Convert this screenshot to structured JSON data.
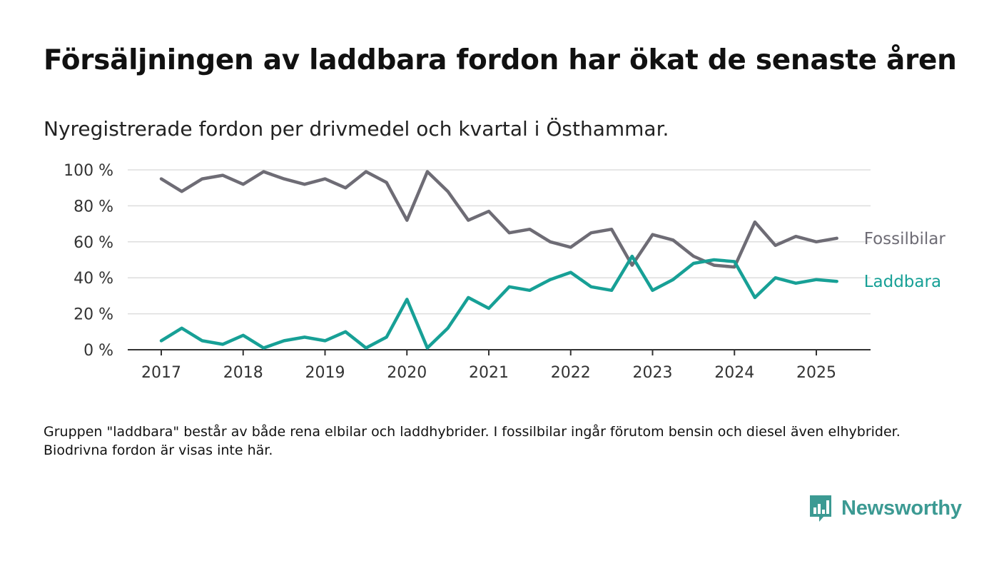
{
  "title": "Försäljningen av laddbara fordon har ökat de senaste åren",
  "subtitle": "Nyregistrerade fordon per drivmedel och kvartal i Östhammar.",
  "note": "Gruppen \"laddbara\" består av både rena elbilar och laddhybrider. I fossilbilar ingår förutom bensin och diesel även elhybrider. Biodrivna fordon är visas inte här.",
  "brand": {
    "name": "Newsworthy",
    "icon": "bar-chart-speech-bubble-icon",
    "color": "#3c9a93"
  },
  "colors": {
    "fossil": "#6e6c75",
    "laddbara": "#17a096",
    "grid": "#dddddd",
    "axis": "#333333",
    "tick_text": "#333333"
  },
  "chart_data": {
    "type": "line",
    "x": [
      2017.0,
      2017.25,
      2017.5,
      2017.75,
      2018.0,
      2018.25,
      2018.5,
      2018.75,
      2019.0,
      2019.25,
      2019.5,
      2019.75,
      2020.0,
      2020.25,
      2020.5,
      2020.75,
      2021.0,
      2021.25,
      2021.5,
      2021.75,
      2022.0,
      2022.25,
      2022.5,
      2022.75,
      2023.0,
      2023.25,
      2023.5,
      2023.75,
      2024.0,
      2024.25,
      2024.5,
      2024.75,
      2025.0,
      2025.25
    ],
    "series": [
      {
        "name": "Fossilbilar",
        "values": [
          95,
          88,
          95,
          97,
          92,
          99,
          95,
          92,
          95,
          90,
          99,
          93,
          72,
          99,
          88,
          72,
          77,
          65,
          67,
          60,
          57,
          65,
          67,
          47,
          64,
          61,
          52,
          47,
          46,
          71,
          58,
          63,
          60,
          62
        ]
      },
      {
        "name": "Laddbara",
        "values": [
          5,
          12,
          5,
          3,
          8,
          1,
          5,
          7,
          5,
          10,
          1,
          7,
          28,
          1,
          12,
          29,
          23,
          35,
          33,
          39,
          43,
          35,
          33,
          52,
          33,
          39,
          48,
          50,
          49,
          29,
          40,
          37,
          39,
          38
        ]
      }
    ],
    "xticks": [
      2017,
      2018,
      2019,
      2020,
      2021,
      2022,
      2023,
      2024,
      2025
    ],
    "xtick_labels": [
      "2017",
      "2018",
      "2019",
      "2020",
      "2021",
      "2022",
      "2023",
      "2024",
      "2025"
    ],
    "yticks": [
      0,
      20,
      40,
      60,
      80,
      100
    ],
    "ytick_labels": [
      "0 %",
      "20 %",
      "40 %",
      "60 %",
      "80 %",
      "100 %"
    ],
    "ylim": [
      0,
      100
    ],
    "xlim": [
      2016.6,
      2025.67
    ],
    "grid": true,
    "legend": "inline-right"
  }
}
